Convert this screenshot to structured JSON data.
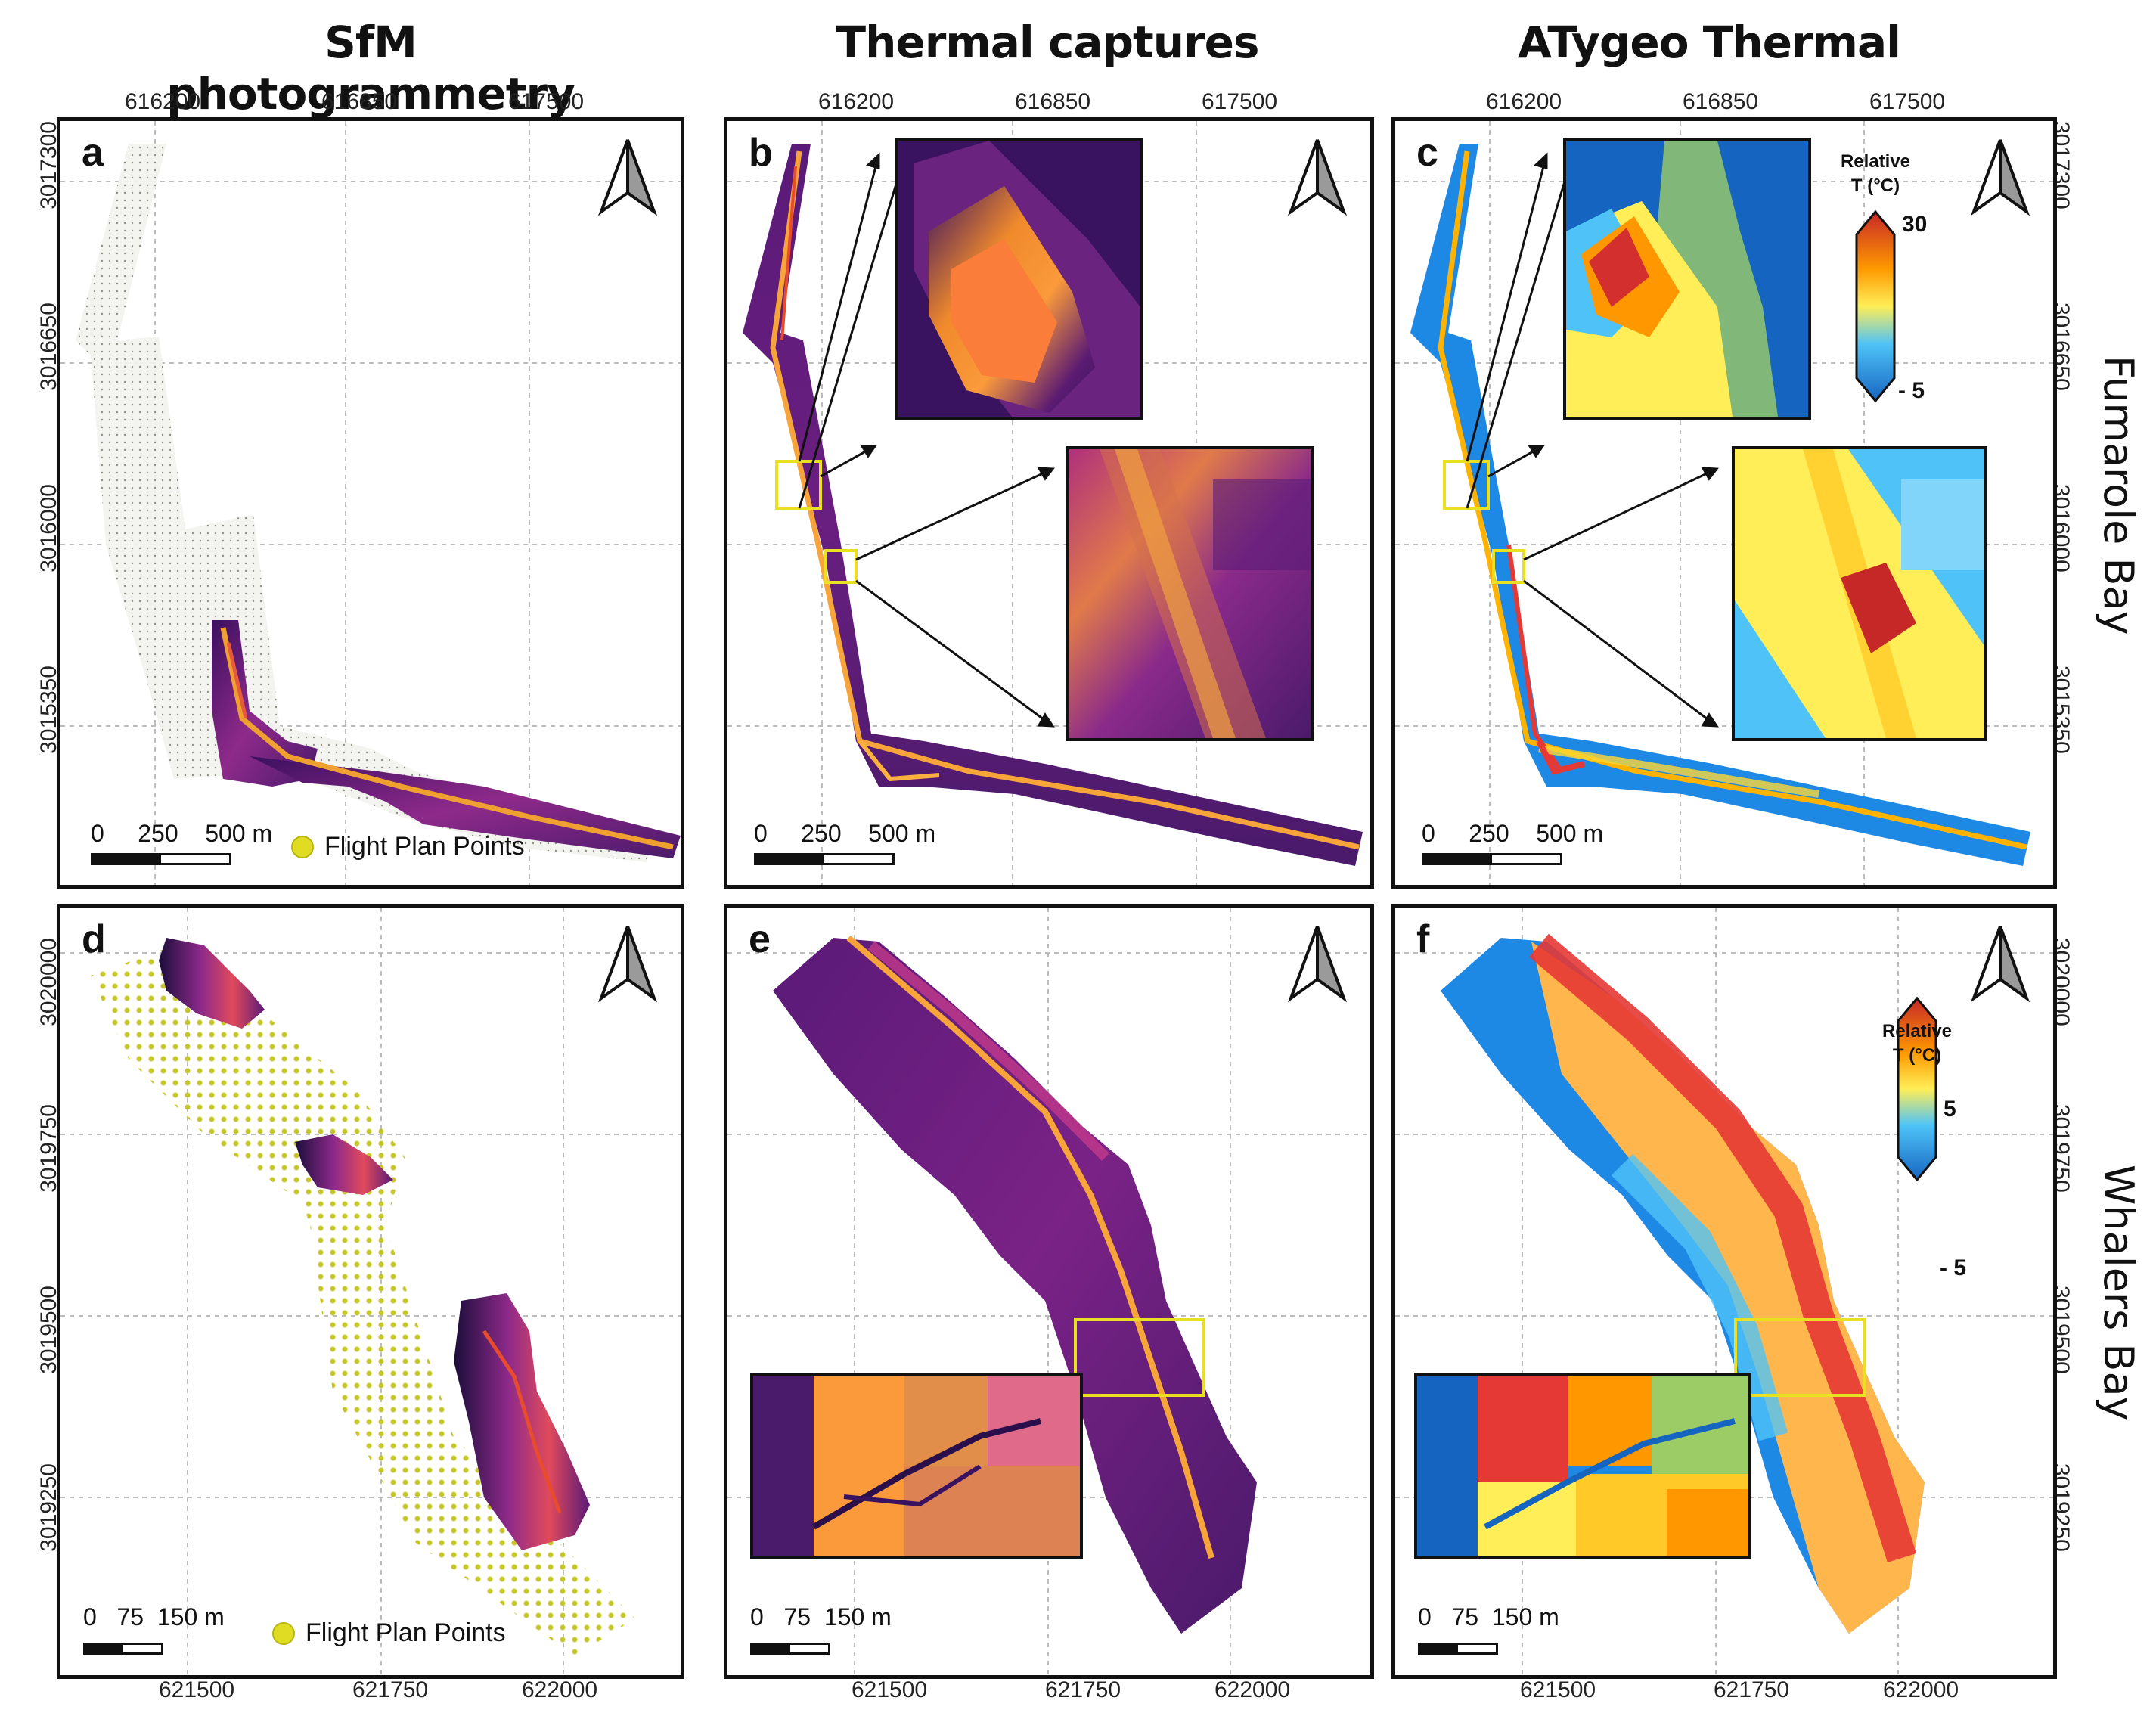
{
  "columns": [
    "SfM photogrammetry",
    "Thermal captures",
    "ATygeo Thermal"
  ],
  "rows": [
    "Fumarole Bay",
    "Whalers Bay"
  ],
  "top_row": {
    "x_ticks": [
      "616200",
      "616850",
      "617500"
    ],
    "y_ticks": [
      "3017300",
      "3016650",
      "3016000",
      "3015350"
    ]
  },
  "bottom_row": {
    "x_ticks": [
      "621500",
      "621750",
      "622000"
    ],
    "y_ticks": [
      "3020000",
      "3019750",
      "3019500",
      "3019250"
    ]
  },
  "panels": {
    "a": {
      "letter": "a",
      "scale": [
        "0",
        "250",
        "500 m"
      ],
      "legend": "Flight Plan Points"
    },
    "b": {
      "letter": "b",
      "scale": [
        "0",
        "250",
        "500 m"
      ]
    },
    "c": {
      "letter": "c",
      "scale": [
        "0",
        "250",
        "500 m"
      ],
      "colorbar": {
        "title_line1": "Relative",
        "title_line2": "T (°C)",
        "max": "30",
        "min": "- 5"
      }
    },
    "d": {
      "letter": "d",
      "scale": [
        "0",
        "75",
        "150 m"
      ],
      "legend": "Flight Plan Points"
    },
    "e": {
      "letter": "e",
      "scale": [
        "0",
        "75",
        "150 m"
      ]
    },
    "f": {
      "letter": "f",
      "scale": [
        "0",
        "75",
        "150 m"
      ],
      "colorbar": {
        "title_line1": "Relative",
        "title_line2": "T (°C)",
        "max": "5",
        "min": "- 5"
      }
    }
  },
  "colors": {
    "frame": "#111111",
    "flight_points": "#e0dc23",
    "highlight_box": "#e8e020",
    "inferno_dark": "#4a1a6b",
    "inferno_mid": "#c23a8a",
    "inferno_hot": "#fba238",
    "cool": "#1565c0",
    "warm": "#d32f2f"
  }
}
